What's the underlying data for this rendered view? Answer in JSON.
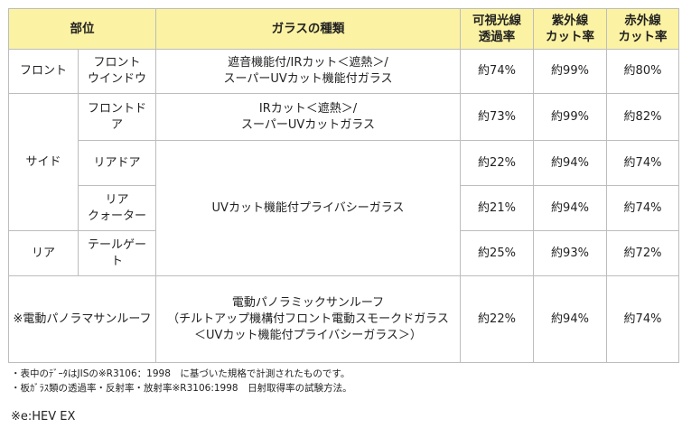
{
  "header": {
    "part": "部位",
    "glass_type": "ガラスの種類",
    "visible": "可視光線\n透過率",
    "uv": "紫外線\nカット率",
    "ir": "赤外線\nカット率"
  },
  "rows": {
    "front": {
      "group": "フロント",
      "sub": "フロント\nウインドウ",
      "glass": "遮音機能付/IRカット＜遮熱＞/\nスーパーUVカット機能付ガラス",
      "visible": "約74%",
      "uv": "約99%",
      "ir": "約80%"
    },
    "side_group": "サイド",
    "side_front": {
      "sub": "フロントドア",
      "glass": "IRカット＜遮熱＞/\nスーパーUVカットガラス",
      "visible": "約73%",
      "uv": "約99%",
      "ir": "約82%"
    },
    "privacy_glass": "UVカット機能付プライバシーガラス",
    "side_rear": {
      "sub": "リアドア",
      "visible": "約22%",
      "uv": "約94%",
      "ir": "約74%"
    },
    "side_quarter": {
      "sub": "リア\nクォーター",
      "visible": "約21%",
      "uv": "約94%",
      "ir": "約74%"
    },
    "rear": {
      "group": "リア",
      "sub": "テールゲート",
      "visible": "約25%",
      "uv": "約93%",
      "ir": "約72%"
    },
    "sunroof": {
      "group": "※電動パノラマサンルーフ",
      "glass": "電動パノラミックサンルーフ\n（チルトアップ機構付フロント電動スモークドガラス\n＜UVカット機能付プライバシーガラス＞）",
      "visible": "約22%",
      "uv": "約94%",
      "ir": "約74%"
    }
  },
  "notes": [
    "・表中のﾃﾞｰﾀはJISの※R3106：1998　に基づいた規格で計測されたものです。",
    "・板ｶﾞﾗｽ類の透過率・反射率・放射率※R3106:1998　日射取得率の試験方法。"
  ],
  "model_note": "※e:HEV EX"
}
